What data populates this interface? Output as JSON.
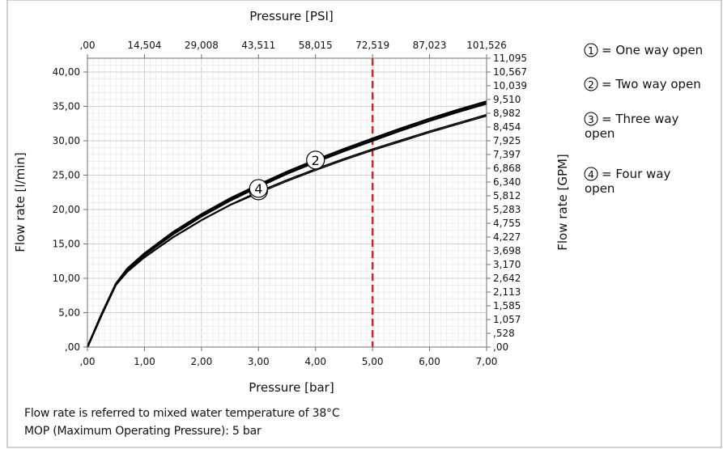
{
  "chart_data": {
    "type": "line",
    "title": "",
    "xlabel": "Pressure [bar]",
    "ylabel": "Flow rate [l/min]",
    "x2label": "Pressure [PSI]",
    "y2label": "Flow rate [GPM]",
    "xlim": [
      0,
      7
    ],
    "ylim": [
      0,
      42
    ],
    "x_ticks": [
      ",00",
      "1,00",
      "2,00",
      "3,00",
      "4,00",
      "5,00",
      "6,00",
      "7,00"
    ],
    "y_ticks": [
      ",00",
      "5,00",
      "10,00",
      "15,00",
      "20,00",
      "25,00",
      "30,00",
      "35,00",
      "40,00"
    ],
    "x2_ticks": [
      ",00",
      "14,504",
      "29,008",
      "43,511",
      "58,015",
      "72,519",
      "87,023",
      "101,526"
    ],
    "y2_ticks": [
      ",00",
      ",528",
      "1,057",
      "1,585",
      "2,113",
      "2,642",
      "3,170",
      "3,698",
      "4,227",
      "4,755",
      "5,283",
      "5,812",
      "6,340",
      "6,868",
      "7,397",
      "7,925",
      "8,454",
      "8,982",
      "9,510",
      "10,039",
      "10,567",
      "11,095"
    ],
    "grid": true,
    "reference_line": {
      "x": 5,
      "color": "#e0201b",
      "style": "dashed"
    },
    "series": [
      {
        "marker": "2",
        "marker_x": 4,
        "x": [
          0,
          0.25,
          0.5,
          0.7,
          1,
          1.5,
          2,
          2.5,
          3,
          3.5,
          4,
          4.5,
          5,
          5.5,
          6,
          6.5,
          7
        ],
        "y": [
          0,
          4.8,
          9.2,
          11.4,
          13.6,
          16.7,
          19.3,
          21.6,
          23.6,
          25.5,
          27.2,
          28.8,
          30.3,
          31.8,
          33.2,
          34.5,
          35.7
        ]
      },
      {
        "marker": "4",
        "marker_x": 3,
        "x": [
          0,
          0.25,
          0.5,
          0.7,
          1,
          1.5,
          2,
          2.5,
          3,
          3.5,
          4,
          4.5,
          5,
          5.5,
          6,
          6.5,
          7
        ],
        "y": [
          0,
          4.7,
          9.1,
          11.2,
          13.4,
          16.4,
          19.0,
          21.3,
          23.3,
          25.2,
          26.9,
          28.5,
          30.0,
          31.5,
          32.9,
          34.2,
          35.4
        ]
      },
      {
        "marker": "1",
        "marker_x": 3,
        "x": [
          0,
          0.25,
          0.5,
          0.7,
          1,
          1.5,
          2,
          2.5,
          3,
          3.5,
          4,
          4.5,
          5,
          5.5,
          6,
          6.5,
          7
        ],
        "y": [
          0,
          4.6,
          9.0,
          11.0,
          13.1,
          16.0,
          18.5,
          20.7,
          22.6,
          24.3,
          25.9,
          27.4,
          28.8,
          30.1,
          31.4,
          32.6,
          33.8
        ]
      },
      {
        "marker": "3",
        "marker_x": 3,
        "x": [
          0,
          0.25,
          0.5,
          0.7,
          1,
          1.5,
          2,
          2.5,
          3,
          3.5,
          4,
          4.5,
          5,
          5.5,
          6,
          6.5,
          7
        ],
        "y": [
          0,
          4.6,
          9.0,
          10.9,
          13.0,
          15.9,
          18.4,
          20.6,
          22.4,
          24.1,
          25.7,
          27.2,
          28.6,
          29.9,
          31.2,
          32.4,
          33.6
        ]
      }
    ],
    "legend": [
      {
        "num": "1",
        "text": "= One way open"
      },
      {
        "num": "2",
        "text": "= Two way open"
      },
      {
        "num": "3",
        "text": "= Three way open"
      },
      {
        "num": "4",
        "text": "= Four way open"
      }
    ],
    "colors": {
      "series": "#000000",
      "grid": "#d9d9d9",
      "reference": "#e0201b",
      "frame": "#a0a0a0"
    }
  },
  "notes": {
    "line1": "Flow rate is referred to mixed water temperature of 38°C",
    "line2": "MOP (Maximum Operating Pressure): 5 bar"
  }
}
